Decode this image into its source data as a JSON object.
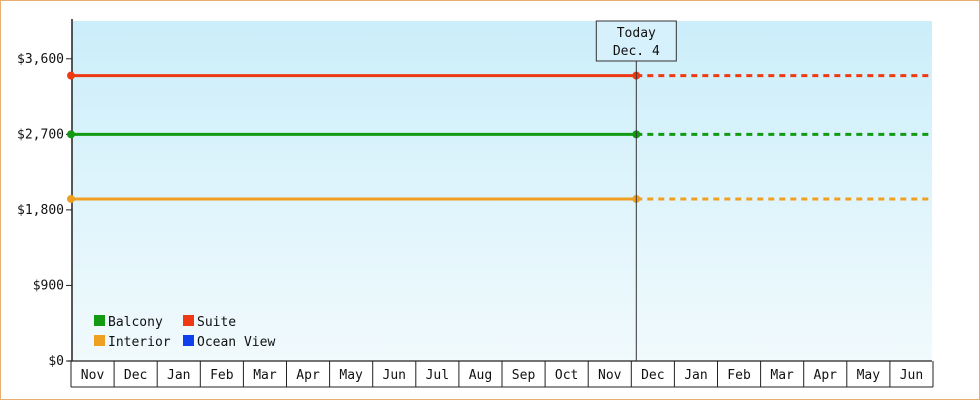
{
  "chart_data": {
    "type": "line",
    "title": "",
    "xlabel": "",
    "ylabel": "",
    "ylim": [
      0,
      4050
    ],
    "y_ticks": [
      0,
      900,
      1800,
      2700,
      3600
    ],
    "y_tick_labels": [
      "$0",
      "$900",
      "$1,800",
      "$2,700",
      "$3,600"
    ],
    "x_tick_labels": [
      "Nov",
      "Dec",
      "Jan",
      "Feb",
      "Mar",
      "Apr",
      "May",
      "Jun",
      "Jul",
      "Aug",
      "Sep",
      "Oct",
      "Nov",
      "Dec",
      "Jan",
      "Feb",
      "Mar",
      "Apr",
      "May",
      "Jun"
    ],
    "today_index": 13,
    "today_label_line1": "Today",
    "today_label_line2": "Dec. 4",
    "legend_position": "bottom-left",
    "series": [
      {
        "name": "Balcony",
        "color": "#129a12",
        "values": [
          2700,
          2700
        ],
        "projected": [
          2700,
          2700
        ]
      },
      {
        "name": "Suite",
        "color": "#ee3a12",
        "values": [
          3400,
          3400
        ],
        "projected": [
          3400,
          3400
        ]
      },
      {
        "name": "Interior",
        "color": "#f0a020",
        "values": [
          1930,
          1930
        ],
        "projected": [
          1930,
          1930
        ]
      },
      {
        "name": "Ocean View",
        "color": "#1040ee",
        "values": [],
        "projected": []
      }
    ],
    "legend_order": [
      "Balcony",
      "Suite",
      "Interior",
      "Ocean View"
    ]
  }
}
